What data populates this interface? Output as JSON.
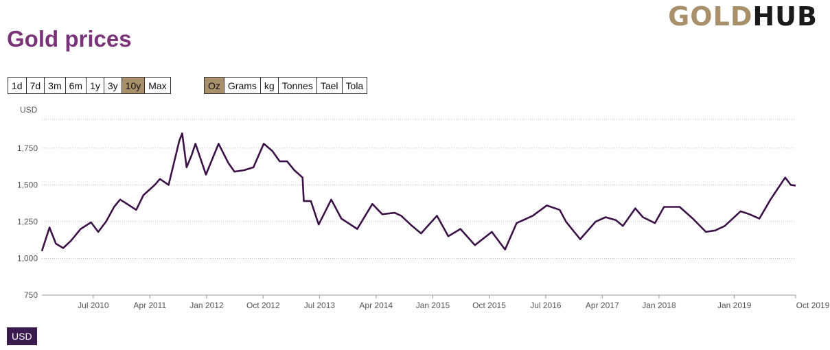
{
  "logo": {
    "part1": "GOLD",
    "part2": "HUB"
  },
  "title": "Gold prices",
  "range_buttons": [
    "1d",
    "7d",
    "3m",
    "6m",
    "1y",
    "3y",
    "10y",
    "Max"
  ],
  "range_active": "10y",
  "unit_buttons": [
    "Oz",
    "Grams",
    "kg",
    "Tonnes",
    "Tael",
    "Tola"
  ],
  "unit_active": "Oz",
  "currency_tag": "USD",
  "colors": {
    "line": "#3b1148",
    "accent": "#a8916a",
    "title": "#7a3378"
  },
  "chart_data": {
    "type": "line",
    "title": "",
    "xlabel": "",
    "ylabel": "USD",
    "ylim": [
      750,
      1950
    ],
    "xlim": [
      "2009-10-25",
      "2019-10-25"
    ],
    "yticks": [
      750,
      1000,
      1250,
      1500,
      1750
    ],
    "ytick_labels": [
      "750",
      "1,000",
      "1,250",
      "1,500",
      "1,750"
    ],
    "xticks": [
      "2010-07-01",
      "2011-04-01",
      "2012-01-01",
      "2012-10-01",
      "2013-07-01",
      "2014-04-01",
      "2015-01-01",
      "2015-10-01",
      "2016-07-01",
      "2017-04-01",
      "2018-01-01",
      "2019-01-01",
      "2019-10-25"
    ],
    "xtick_labels": [
      "Jul 2010",
      "Apr 2011",
      "Jan 2012",
      "Oct 2012",
      "Jul 2013",
      "Apr 2014",
      "Jan 2015",
      "Oct 2015",
      "Jul 2016",
      "Apr 2017",
      "Jan 2018",
      "Jan 2019",
      "Oct 2019"
    ],
    "grid": true,
    "series": [
      {
        "x": [
          "2009-10-25",
          "2009-12-01",
          "2010-01-01",
          "2010-02-05",
          "2010-03-15",
          "2010-05-01",
          "2010-06-20",
          "2010-07-25",
          "2010-09-01",
          "2010-10-10",
          "2010-11-08",
          "2010-12-01",
          "2011-01-25",
          "2011-03-01",
          "2011-04-25",
          "2011-05-20",
          "2011-07-01",
          "2011-08-22",
          "2011-09-05",
          "2011-09-26",
          "2011-10-20",
          "2011-11-08",
          "2011-12-29",
          "2012-02-28",
          "2012-04-15",
          "2012-05-15",
          "2012-07-01",
          "2012-08-15",
          "2012-10-04",
          "2012-11-15",
          "2012-12-20",
          "2013-01-25",
          "2013-03-01",
          "2013-04-10",
          "2013-04-16",
          "2013-05-20",
          "2013-06-27",
          "2013-08-27",
          "2013-10-15",
          "2013-12-31",
          "2014-03-14",
          "2014-05-01",
          "2014-06-30",
          "2014-08-01",
          "2014-09-15",
          "2014-11-05",
          "2015-01-21",
          "2015-03-17",
          "2015-05-15",
          "2015-07-24",
          "2015-10-14",
          "2015-12-17",
          "2016-02-11",
          "2016-04-29",
          "2016-07-06",
          "2016-09-07",
          "2016-10-07",
          "2016-12-15",
          "2017-02-28",
          "2017-04-17",
          "2017-06-06",
          "2017-07-10",
          "2017-09-08",
          "2017-10-15",
          "2017-12-12",
          "2018-01-25",
          "2018-04-11",
          "2018-06-14",
          "2018-08-16",
          "2018-09-30",
          "2018-11-15",
          "2019-01-31",
          "2019-03-15",
          "2019-05-02",
          "2019-06-25",
          "2019-08-07",
          "2019-09-04",
          "2019-10-01",
          "2019-10-25"
        ],
        "values": [
          1050,
          1210,
          1100,
          1070,
          1120,
          1200,
          1245,
          1180,
          1250,
          1350,
          1400,
          1380,
          1330,
          1430,
          1500,
          1540,
          1500,
          1800,
          1850,
          1620,
          1700,
          1780,
          1570,
          1780,
          1650,
          1590,
          1600,
          1620,
          1780,
          1730,
          1660,
          1660,
          1600,
          1550,
          1390,
          1390,
          1230,
          1400,
          1270,
          1200,
          1370,
          1300,
          1310,
          1290,
          1230,
          1170,
          1290,
          1150,
          1200,
          1090,
          1180,
          1060,
          1240,
          1290,
          1360,
          1330,
          1250,
          1130,
          1250,
          1280,
          1260,
          1220,
          1340,
          1280,
          1240,
          1350,
          1350,
          1270,
          1180,
          1190,
          1220,
          1320,
          1300,
          1270,
          1400,
          1490,
          1550,
          1500,
          1495
        ]
      }
    ]
  }
}
